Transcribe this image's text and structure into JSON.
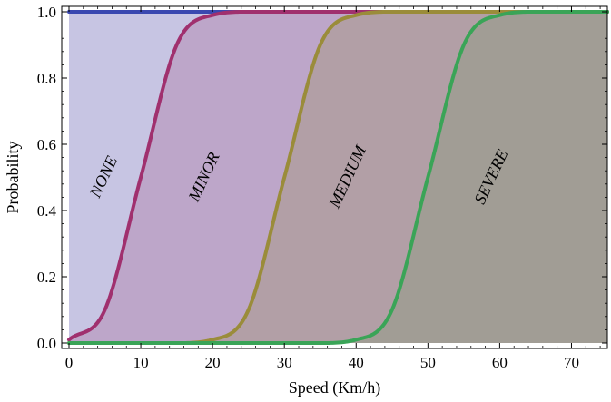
{
  "chart_data": {
    "type": "area",
    "xlabel": "Speed (Km/h)",
    "ylabel": "Probability",
    "xlim": [
      0,
      75
    ],
    "ylim": [
      0,
      1.0
    ],
    "x_ticks": [
      "0",
      "10",
      "20",
      "30",
      "40",
      "50",
      "60",
      "70"
    ],
    "y_ticks": [
      "0.0",
      "0.2",
      "0.4",
      "0.6",
      "0.8",
      "1.0"
    ],
    "x": [
      0,
      5,
      10,
      15,
      20,
      25,
      30,
      35,
      40,
      45,
      50,
      55,
      60,
      65,
      70,
      75
    ],
    "series": [
      {
        "color": "#3a48b0",
        "values": [
          1,
          1,
          1,
          1,
          1,
          1,
          1,
          1,
          1,
          1,
          1,
          1,
          1,
          1,
          1,
          1
        ]
      },
      {
        "color": "#a0306e",
        "values": [
          0.01,
          0.1,
          0.5,
          0.9,
          0.99,
          1,
          1,
          1,
          1,
          1,
          1,
          1,
          1,
          1,
          1,
          1
        ]
      },
      {
        "color": "#9a8c3a",
        "values": [
          0,
          0,
          0,
          0,
          0.01,
          0.1,
          0.5,
          0.9,
          0.99,
          1,
          1,
          1,
          1,
          1,
          1,
          1
        ]
      },
      {
        "color": "#3aa457",
        "values": [
          0,
          0,
          0,
          0,
          0,
          0,
          0,
          0,
          0.01,
          0.1,
          0.5,
          0.9,
          0.99,
          1,
          1,
          1
        ]
      }
    ],
    "fill_colors": [
      "#c7c5e3",
      "#bda6c9",
      "#b29fa6",
      "#a19d95"
    ],
    "region_labels": [
      {
        "text": "NONE",
        "x": 5,
        "y": 0.5
      },
      {
        "text": "MINOR",
        "x": 19,
        "y": 0.5
      },
      {
        "text": "MEDIUM",
        "x": 39,
        "y": 0.5
      },
      {
        "text": "SEVERE",
        "x": 59,
        "y": 0.5
      }
    ]
  }
}
